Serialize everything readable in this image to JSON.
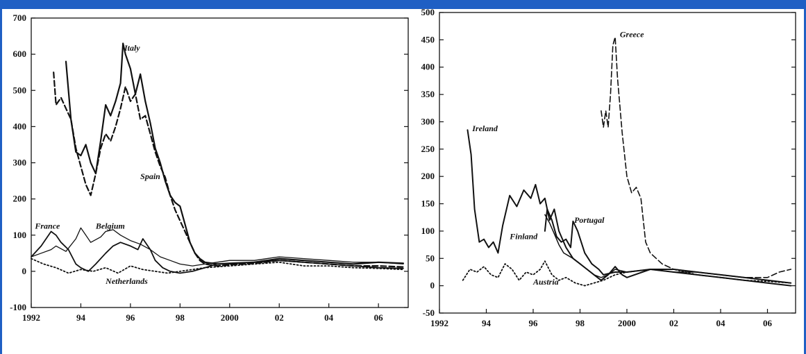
{
  "colors": {
    "accent": "#1f5fc4",
    "line": "#111111"
  },
  "chart_data": [
    {
      "type": "line",
      "xlim": [
        1992,
        2007.2
      ],
      "ylim": [
        -100,
        700
      ],
      "y_ticks": [
        -100,
        0,
        100,
        200,
        300,
        400,
        500,
        600,
        700
      ],
      "x_ticks": [
        {
          "value": 1992,
          "label": "1992"
        },
        {
          "value": 1994,
          "label": "94"
        },
        {
          "value": 1996,
          "label": "96"
        },
        {
          "value": 1998,
          "label": "98"
        },
        {
          "value": 2000,
          "label": "2000"
        },
        {
          "value": 2002,
          "label": "02"
        },
        {
          "value": 2004,
          "label": "04"
        },
        {
          "value": 2006,
          "label": "06"
        }
      ],
      "grid": false,
      "series": [
        {
          "name": "Italy",
          "style": "solid",
          "width": 2.2,
          "label_at": [
            1995.75,
            610
          ],
          "x": [
            1993.4,
            1993.6,
            1993.8,
            1994.0,
            1994.2,
            1994.4,
            1994.6,
            1994.8,
            1995.0,
            1995.2,
            1995.4,
            1995.6,
            1995.7,
            1995.8,
            1996.0,
            1996.2,
            1996.4,
            1996.6,
            1996.8,
            1997.0,
            1997.2,
            1997.4,
            1997.6,
            1997.8,
            1998.0,
            1998.2,
            1998.4,
            1998.6,
            1998.8,
            1999.0,
            1999.5,
            2000.0,
            2001.0,
            2002.0,
            2003.0,
            2004.0,
            2005.0,
            2006.0,
            2007.0
          ],
          "y": [
            580,
            420,
            330,
            320,
            350,
            300,
            270,
            360,
            460,
            430,
            470,
            520,
            630,
            600,
            560,
            490,
            545,
            470,
            410,
            340,
            300,
            250,
            210,
            190,
            180,
            130,
            80,
            50,
            35,
            25,
            20,
            22,
            25,
            35,
            30,
            25,
            20,
            25,
            22
          ]
        },
        {
          "name": "Spain",
          "style": "dashed",
          "width": 2.2,
          "label_at": [
            1996.4,
            255
          ],
          "x": [
            1992.9,
            1993.0,
            1993.2,
            1993.4,
            1993.6,
            1993.8,
            1994.0,
            1994.2,
            1994.4,
            1994.6,
            1994.8,
            1995.0,
            1995.2,
            1995.4,
            1995.6,
            1995.8,
            1996.0,
            1996.2,
            1996.4,
            1996.6,
            1996.8,
            1997.0,
            1997.2,
            1997.4,
            1997.6,
            1997.8,
            1998.0,
            1998.2,
            1998.4,
            1998.6,
            1998.8,
            1999.0,
            1999.5,
            2000.0,
            2001.0,
            2002.0,
            2003.0,
            2004.0,
            2005.0,
            2006.0,
            2007.0
          ],
          "y": [
            550,
            460,
            480,
            450,
            420,
            340,
            290,
            240,
            210,
            270,
            340,
            380,
            360,
            400,
            450,
            510,
            470,
            490,
            420,
            430,
            380,
            330,
            290,
            260,
            210,
            170,
            140,
            110,
            80,
            50,
            30,
            20,
            15,
            18,
            22,
            30,
            25,
            20,
            15,
            15,
            12
          ]
        },
        {
          "name": "Belgium",
          "style": "solid",
          "width": 1.3,
          "label_at": [
            1994.6,
            118
          ],
          "x": [
            1992.0,
            1992.4,
            1992.8,
            1993.0,
            1993.4,
            1993.8,
            1994.0,
            1994.2,
            1994.4,
            1994.8,
            1995.0,
            1995.3,
            1995.6,
            1996.0,
            1996.4,
            1996.8,
            1997.2,
            1997.6,
            1998.0,
            1998.5,
            1999.0,
            1999.5,
            2000.0,
            2001.0,
            2002.0,
            2003.0,
            2004.0,
            2005.0,
            2006.0,
            2007.0
          ],
          "y": [
            40,
            50,
            60,
            70,
            55,
            90,
            120,
            100,
            80,
            95,
            110,
            115,
            100,
            85,
            75,
            60,
            40,
            30,
            20,
            15,
            20,
            25,
            30,
            30,
            40,
            35,
            30,
            25,
            25,
            20
          ]
        },
        {
          "name": "France",
          "style": "solid",
          "width": 1.8,
          "label_at": [
            1992.15,
            118
          ],
          "x": [
            1992.0,
            1992.4,
            1992.8,
            1993.0,
            1993.2,
            1993.5,
            1993.8,
            1994.0,
            1994.3,
            1994.6,
            1995.0,
            1995.3,
            1995.6,
            1996.0,
            1996.3,
            1996.5,
            1996.8,
            1997.0,
            1997.3,
            1997.6,
            1998.0,
            1998.5,
            1999.0,
            1999.5,
            2000.0,
            2001.0,
            2002.0,
            2003.0,
            2004.0,
            2005.0,
            2006.0,
            2007.0
          ],
          "y": [
            40,
            70,
            110,
            100,
            80,
            60,
            20,
            10,
            0,
            20,
            50,
            70,
            80,
            70,
            60,
            90,
            60,
            30,
            10,
            0,
            -5,
            0,
            10,
            20,
            20,
            25,
            30,
            25,
            20,
            15,
            10,
            8
          ]
        },
        {
          "name": "Netherlands",
          "style": "dotted",
          "width": 1.8,
          "label_at": [
            1995.0,
            -35
          ],
          "x": [
            1992.0,
            1992.5,
            1993.0,
            1993.5,
            1994.0,
            1994.5,
            1995.0,
            1995.5,
            1996.0,
            1996.5,
            1997.0,
            1997.5,
            1998.0,
            1998.5,
            1999.0,
            2000.0,
            2001.0,
            2002.0,
            2003.0,
            2004.0,
            2005.0,
            2006.0,
            2007.0
          ],
          "y": [
            35,
            20,
            10,
            -5,
            5,
            0,
            10,
            -5,
            15,
            5,
            0,
            -5,
            0,
            5,
            10,
            15,
            20,
            25,
            15,
            15,
            10,
            8,
            5
          ]
        }
      ]
    },
    {
      "type": "line",
      "xlim": [
        1992,
        2007.2
      ],
      "ylim": [
        -50,
        500
      ],
      "y_ticks": [
        -50,
        0,
        50,
        100,
        150,
        200,
        250,
        300,
        350,
        400,
        450,
        500
      ],
      "x_ticks": [
        {
          "value": 1992,
          "label": "1992"
        },
        {
          "value": 1994,
          "label": "94"
        },
        {
          "value": 1996,
          "label": "96"
        },
        {
          "value": 1998,
          "label": "98"
        },
        {
          "value": 2000,
          "label": "2000"
        },
        {
          "value": 2002,
          "label": "02"
        },
        {
          "value": 2004,
          "label": "04"
        },
        {
          "value": 2006,
          "label": "06"
        }
      ],
      "grid": false,
      "series": [
        {
          "name": "Greece",
          "style": "dashed",
          "width": 1.6,
          "label_at": [
            1999.7,
            455
          ],
          "x": [
            1998.9,
            1999.0,
            1999.1,
            1999.2,
            1999.3,
            1999.4,
            1999.5,
            1999.6,
            1999.8,
            2000.0,
            2000.2,
            2000.4,
            2000.6,
            2000.8,
            2001.0,
            2001.5,
            2002.0,
            2003.0,
            2004.0,
            2005.0,
            2006.0,
            2006.5,
            2007.0
          ],
          "y": [
            320,
            290,
            320,
            290,
            350,
            440,
            455,
            380,
            280,
            200,
            170,
            180,
            160,
            80,
            60,
            40,
            30,
            25,
            20,
            15,
            15,
            25,
            30
          ]
        },
        {
          "name": "Ireland",
          "style": "solid",
          "width": 2.0,
          "label_at": [
            1993.4,
            283
          ],
          "x": [
            1993.2,
            1993.35,
            1993.5,
            1993.7,
            1993.9,
            1994.1,
            1994.3,
            1994.5,
            1994.7,
            1995.0,
            1995.3,
            1995.6,
            1995.9,
            1996.1,
            1996.3,
            1996.5,
            1996.7,
            1996.9,
            1997.1,
            1997.4,
            1997.7,
            1998.0,
            1998.3,
            1998.6,
            1998.9,
            1999.2,
            1999.5,
            1999.8,
            2000.0,
            2001.0,
            2002.0,
            2003.0,
            2004.0,
            2005.0,
            2006.0,
            2007.0
          ],
          "y": [
            285,
            240,
            140,
            80,
            85,
            70,
            80,
            60,
            110,
            165,
            145,
            175,
            160,
            185,
            150,
            160,
            120,
            140,
            100,
            70,
            50,
            40,
            30,
            20,
            10,
            20,
            35,
            20,
            15,
            30,
            25,
            20,
            15,
            10,
            5,
            0
          ]
        },
        {
          "name": "Portugal",
          "style": "solid",
          "width": 2.0,
          "label_at": [
            1997.75,
            115
          ],
          "x": [
            1996.5,
            1996.6,
            1996.8,
            1997.0,
            1997.2,
            1997.4,
            1997.6,
            1997.7,
            1997.9,
            1998.2,
            1998.5,
            1998.8,
            1999.0,
            1999.5,
            2000.0,
            2001.0,
            2002.0,
            2003.0,
            2004.0,
            2005.0,
            2006.0,
            2007.0
          ],
          "y": [
            100,
            140,
            120,
            90,
            80,
            85,
            70,
            118,
            100,
            60,
            40,
            30,
            20,
            25,
            25,
            30,
            30,
            25,
            20,
            15,
            10,
            5
          ]
        },
        {
          "name": "Finland",
          "style": "solid",
          "width": 1.5,
          "label_at": [
            1995.0,
            85
          ],
          "x": [
            1996.5,
            1996.7,
            1996.9,
            1997.1,
            1997.3,
            1997.5,
            1997.7,
            1998.0,
            1998.3,
            1998.6,
            1998.9,
            1999.2,
            1999.5,
            2000.0,
            2001.0,
            2002.0,
            2003.0,
            2004.0,
            2005.0,
            2006.0,
            2007.0
          ],
          "y": [
            130,
            115,
            95,
            75,
            60,
            55,
            50,
            40,
            30,
            20,
            15,
            20,
            30,
            25,
            30,
            25,
            25,
            20,
            15,
            10,
            5
          ]
        },
        {
          "name": "Austria",
          "style": "dotted",
          "width": 1.8,
          "label_at": [
            1996.0,
            2
          ],
          "x": [
            1993.0,
            1993.3,
            1993.6,
            1993.9,
            1994.2,
            1994.5,
            1994.8,
            1995.1,
            1995.4,
            1995.7,
            1996.0,
            1996.3,
            1996.5,
            1996.8,
            1997.1,
            1997.4,
            1997.8,
            1998.2,
            1998.6,
            1999.0,
            1999.5,
            2000.0,
            2001.0,
            2002.0,
            2003.0,
            2004.0,
            2005.0,
            2006.0,
            2007.0
          ],
          "y": [
            10,
            30,
            25,
            35,
            20,
            15,
            40,
            30,
            10,
            25,
            20,
            30,
            45,
            20,
            10,
            15,
            5,
            0,
            5,
            10,
            20,
            25,
            30,
            30,
            20,
            15,
            10,
            8,
            5
          ]
        }
      ]
    }
  ]
}
